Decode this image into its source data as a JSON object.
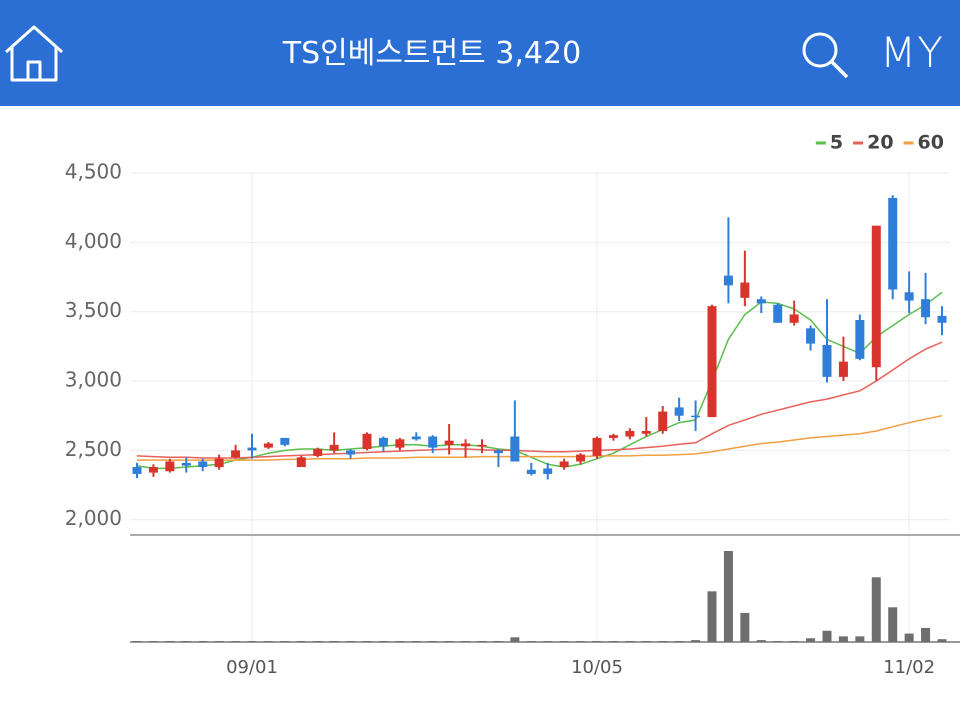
{
  "header": {
    "title": "TS인베스트먼트 3,420",
    "my": "MY"
  },
  "chart_data": {
    "type": "candlestick",
    "categories": [
      null,
      null,
      null,
      null,
      null,
      null,
      null,
      "09/01",
      null,
      null,
      null,
      null,
      null,
      null,
      null,
      null,
      null,
      null,
      null,
      null,
      null,
      null,
      null,
      null,
      null,
      null,
      null,
      null,
      "10/05",
      null,
      null,
      null,
      null,
      null,
      null,
      null,
      null,
      null,
      null,
      null,
      null,
      null,
      null,
      null,
      null,
      null,
      null,
      "11/02",
      null,
      null
    ],
    "open": [
      2380,
      2340,
      2350,
      2410,
      2420,
      2380,
      2450,
      2520,
      2520,
      2590,
      2380,
      2460,
      2500,
      2500,
      2510,
      2590,
      2520,
      2600,
      2600,
      2540,
      2530,
      2530,
      2500,
      2600,
      2360,
      2370,
      2380,
      2420,
      2460,
      2590,
      2600,
      2620,
      2640,
      2810,
      2750,
      2740,
      3760,
      3600,
      3590,
      3550,
      3420,
      3380,
      3260,
      3030,
      3440,
      3100,
      4320,
      3640,
      3590,
      3470
    ],
    "high": [
      2410,
      2400,
      2440,
      2450,
      2440,
      2470,
      2540,
      2620,
      2560,
      2590,
      2460,
      2520,
      2630,
      2510,
      2630,
      2600,
      2590,
      2630,
      2610,
      2690,
      2580,
      2580,
      2510,
      2860,
      2410,
      2410,
      2440,
      2480,
      2600,
      2620,
      2660,
      2740,
      2820,
      2880,
      2860,
      3550,
      4180,
      3940,
      3610,
      3560,
      3580,
      3400,
      3590,
      3320,
      3480,
      4120,
      4340,
      3790,
      3780,
      3540
    ],
    "low": [
      2300,
      2310,
      2340,
      2340,
      2350,
      2360,
      2440,
      2440,
      2510,
      2530,
      2380,
      2450,
      2480,
      2440,
      2500,
      2490,
      2500,
      2570,
      2480,
      2470,
      2450,
      2480,
      2380,
      2420,
      2320,
      2290,
      2360,
      2400,
      2440,
      2570,
      2580,
      2600,
      2620,
      2710,
      2640,
      2740,
      3560,
      3540,
      3490,
      3420,
      3400,
      3220,
      2990,
      3000,
      3150,
      3000,
      3590,
      3490,
      3410,
      3330
    ],
    "close": [
      2330,
      2380,
      2420,
      2390,
      2380,
      2440,
      2500,
      2500,
      2550,
      2540,
      2450,
      2510,
      2540,
      2470,
      2620,
      2530,
      2580,
      2580,
      2520,
      2570,
      2550,
      2540,
      2480,
      2420,
      2330,
      2330,
      2420,
      2470,
      2590,
      2610,
      2640,
      2640,
      2780,
      2750,
      2740,
      3540,
      3690,
      3710,
      3560,
      3420,
      3480,
      3270,
      3030,
      3140,
      3160,
      4120,
      3660,
      3580,
      3460,
      3420
    ],
    "up_color": "#d8342c",
    "down_color": "#2f7ed8",
    "volume": [
      1,
      1,
      1,
      1,
      1,
      1,
      1,
      1,
      1,
      1,
      1,
      1,
      1,
      1,
      1,
      1,
      1,
      1,
      1,
      1,
      1,
      1,
      1,
      5,
      1,
      1,
      1,
      1,
      1,
      1,
      1,
      1,
      1,
      1,
      2,
      54,
      97,
      31,
      2,
      1,
      1,
      4,
      12,
      6,
      6,
      69,
      37,
      9,
      15,
      3
    ],
    "volume_color": "#6e6e6e",
    "ylim": [
      1890,
      4500
    ],
    "yticks": [
      {
        "value": 2000,
        "label": "2,000"
      },
      {
        "value": 2500,
        "label": "2,500"
      },
      {
        "value": 3000,
        "label": "3,000"
      },
      {
        "value": 3500,
        "label": "3,500"
      },
      {
        "value": 4000,
        "label": "4,000"
      },
      {
        "value": 4500,
        "label": "4,500"
      }
    ],
    "grid": true,
    "legend": "top-right",
    "series": [
      {
        "name": "5",
        "color": "#5cbd4f",
        "values": [
          2390,
          2370,
          2370,
          2380,
          2390,
          2400,
          2430,
          2450,
          2480,
          2500,
          2510,
          2510,
          2500,
          2510,
          2520,
          2530,
          2540,
          2540,
          2530,
          2540,
          2540,
          2530,
          2510,
          2500,
          2450,
          2400,
          2380,
          2400,
          2440,
          2480,
          2540,
          2600,
          2650,
          2700,
          2720,
          3000,
          3300,
          3480,
          3570,
          3560,
          3520,
          3440,
          3300,
          3250,
          3200,
          3320,
          3400,
          3480,
          3550,
          3640
        ]
      },
      {
        "name": "20",
        "color": "#e8605a",
        "values": [
          2460,
          2455,
          2450,
          2450,
          2445,
          2445,
          2445,
          2450,
          2455,
          2460,
          2465,
          2470,
          2475,
          2480,
          2485,
          2490,
          2495,
          2500,
          2505,
          2510,
          2510,
          2505,
          2500,
          2500,
          2495,
          2490,
          2490,
          2495,
          2500,
          2505,
          2510,
          2520,
          2530,
          2545,
          2555,
          2620,
          2680,
          2720,
          2760,
          2790,
          2820,
          2850,
          2870,
          2900,
          2930,
          3000,
          3080,
          3160,
          3230,
          3280
        ]
      },
      {
        "name": "60",
        "color": "#f0a040",
        "values": [
          2430,
          2430,
          2430,
          2430,
          2430,
          2430,
          2430,
          2430,
          2430,
          2435,
          2435,
          2440,
          2440,
          2440,
          2445,
          2445,
          2445,
          2450,
          2450,
          2450,
          2450,
          2455,
          2455,
          2455,
          2455,
          2455,
          2455,
          2455,
          2460,
          2460,
          2460,
          2465,
          2465,
          2470,
          2475,
          2490,
          2510,
          2530,
          2550,
          2560,
          2575,
          2590,
          2600,
          2610,
          2620,
          2640,
          2670,
          2700,
          2725,
          2750
        ]
      }
    ]
  }
}
